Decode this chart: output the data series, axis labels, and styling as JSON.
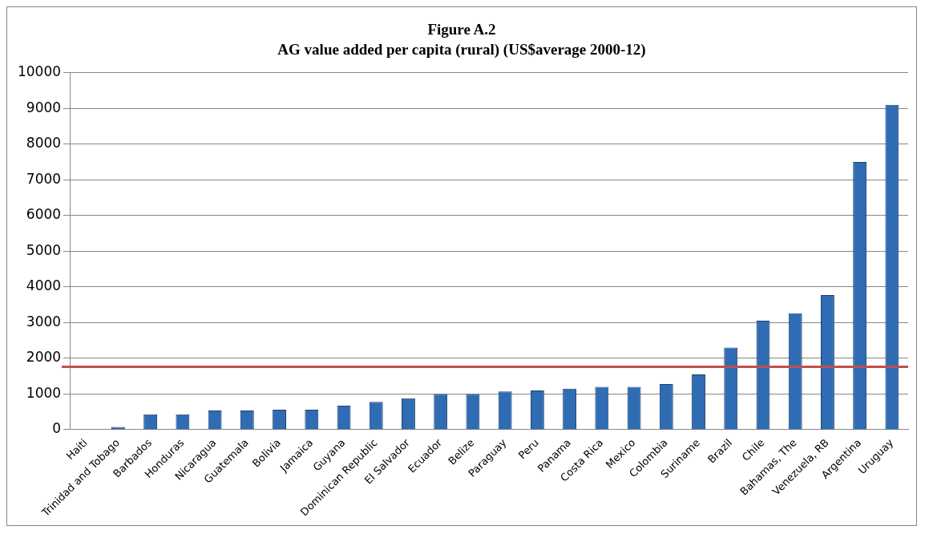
{
  "chart_data": {
    "type": "bar",
    "title": "Figure A.2",
    "subtitle": "AG value added per capita (rural) (US$average 2000-12)",
    "categories": [
      "Haiti",
      "Trinidad and Tobago",
      "Barbados",
      "Honduras",
      "Nicaragua",
      "Guatemala",
      "Bolivia",
      "Jamaica",
      "Guyana",
      "Dominican Republic",
      "El Salvador",
      "Ecuador",
      "Belize",
      "Paraguay",
      "Peru",
      "Panama",
      "Costa Rica",
      "Mexico",
      "Colombia",
      "Suriname",
      "Brazil",
      "Chile",
      "Bahamas, The",
      "Venezuela, RB",
      "Argentina",
      "Uruguay"
    ],
    "values": [
      null,
      75,
      430,
      430,
      540,
      540,
      560,
      560,
      670,
      780,
      880,
      1000,
      1000,
      1070,
      1100,
      1150,
      1200,
      1200,
      1280,
      1550,
      2300,
      3050,
      3260,
      3770,
      7500,
      9100
    ],
    "color": "#2f6cb3",
    "ylim": [
      0,
      10000
    ],
    "yticks": [
      0,
      1000,
      2000,
      3000,
      4000,
      5000,
      6000,
      7000,
      8000,
      9000,
      10000
    ],
    "grid": "y",
    "legend": false,
    "ref_lines": [
      {
        "axis": "y",
        "value": 1760,
        "color": "#c0504d"
      }
    ]
  }
}
